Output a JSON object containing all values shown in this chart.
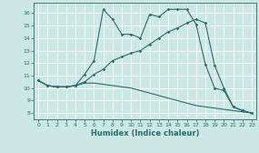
{
  "title": "",
  "xlabel": "Humidex (Indice chaleur)",
  "bg_color": "#cce8e4",
  "line_color": "#2a6b6b",
  "grid_color": "#ffffff",
  "xlim": [
    -0.5,
    23.5
  ],
  "ylim": [
    7.5,
    16.8
  ],
  "yticks": [
    8,
    9,
    10,
    11,
    12,
    13,
    14,
    15,
    16
  ],
  "xticks": [
    0,
    1,
    2,
    3,
    4,
    5,
    6,
    7,
    8,
    9,
    10,
    11,
    12,
    13,
    14,
    15,
    16,
    17,
    18,
    19,
    20,
    21,
    22,
    23
  ],
  "series1_x": [
    0,
    1,
    2,
    3,
    4,
    5,
    6,
    7,
    8,
    9,
    10,
    11,
    12,
    13,
    14,
    15,
    16,
    17,
    18,
    19,
    20,
    21,
    22,
    23
  ],
  "series1_y": [
    10.6,
    10.2,
    10.1,
    10.1,
    10.2,
    10.5,
    11.1,
    11.5,
    12.2,
    12.5,
    12.8,
    13.0,
    13.5,
    14.0,
    14.5,
    14.8,
    15.2,
    15.5,
    15.2,
    11.8,
    10.0,
    8.5,
    8.2,
    8.0
  ],
  "series2_x": [
    0,
    1,
    2,
    3,
    4,
    5,
    6,
    7,
    8,
    9,
    10,
    11,
    12,
    13,
    14,
    15,
    16,
    17,
    18,
    19,
    20,
    21,
    22,
    23
  ],
  "series2_y": [
    10.6,
    10.2,
    10.1,
    10.1,
    10.2,
    11.1,
    12.2,
    16.3,
    15.5,
    14.3,
    14.3,
    14.0,
    15.9,
    15.7,
    16.3,
    16.3,
    16.3,
    15.1,
    11.9,
    10.0,
    9.8,
    8.5,
    8.2,
    8.0
  ],
  "series3_x": [
    0,
    1,
    2,
    3,
    4,
    5,
    6,
    7,
    8,
    9,
    10,
    11,
    12,
    13,
    14,
    15,
    16,
    17,
    18,
    19,
    20,
    21,
    22,
    23
  ],
  "series3_y": [
    10.6,
    10.2,
    10.1,
    10.1,
    10.2,
    10.4,
    10.4,
    10.3,
    10.2,
    10.1,
    10.0,
    9.8,
    9.6,
    9.4,
    9.2,
    9.0,
    8.8,
    8.6,
    8.5,
    8.4,
    8.3,
    8.2,
    8.1,
    8.0
  ]
}
